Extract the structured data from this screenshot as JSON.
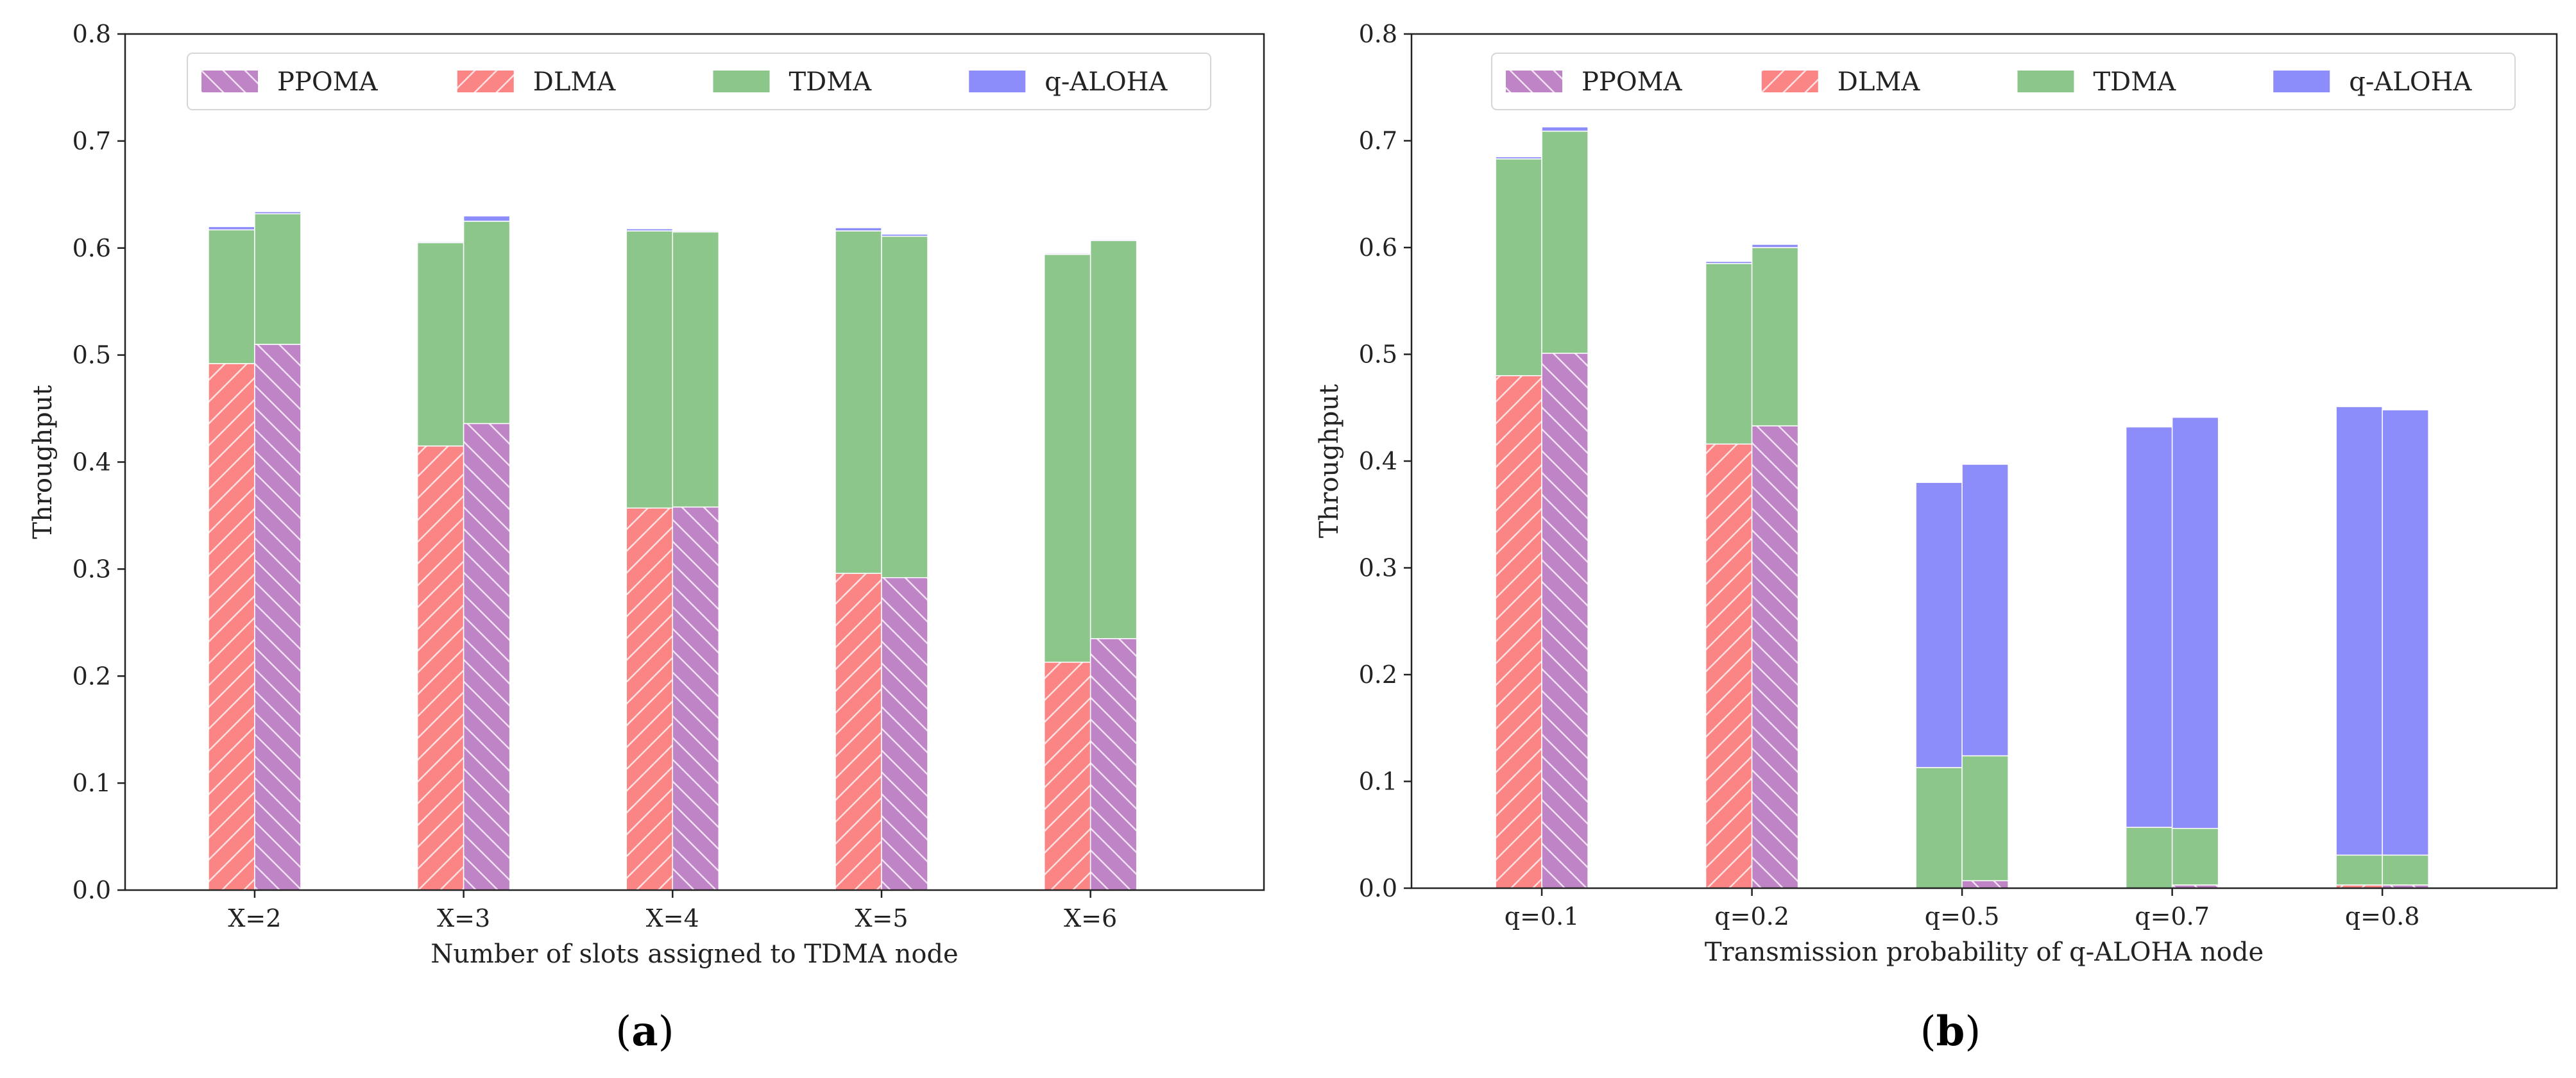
{
  "colors": {
    "PPOMA": "#bf84c6",
    "DLMA": "#fb8585",
    "TDMA": "#8cc68b",
    "q-ALOHA": "#8c8cfb"
  },
  "chart_data": [
    {
      "type": "bar",
      "stacked": true,
      "caption_letter": "a",
      "title": "",
      "xlabel": "Number of slots assigned to TDMA node",
      "ylabel": "Throughput",
      "ylim": [
        0,
        0.8
      ],
      "yticks": [
        0.0,
        0.1,
        0.2,
        0.3,
        0.4,
        0.5,
        0.6,
        0.7,
        0.8
      ],
      "grid": false,
      "legend": {
        "placement": "top",
        "entries": [
          "PPOMA",
          "DLMA",
          "TDMA",
          "q-ALOHA"
        ]
      },
      "categories": [
        "X=2",
        "X=3",
        "X=4",
        "X=5",
        "X=6"
      ],
      "bars": [
        {
          "category": "X=2",
          "method": "DLMA",
          "agent": 0.492,
          "TDMA": 0.125,
          "q-ALOHA": 0.003
        },
        {
          "category": "X=2",
          "method": "PPOMA",
          "agent": 0.51,
          "TDMA": 0.122,
          "q-ALOHA": 0.002
        },
        {
          "category": "X=3",
          "method": "DLMA",
          "agent": 0.415,
          "TDMA": 0.19,
          "q-ALOHA": 0.001
        },
        {
          "category": "X=3",
          "method": "PPOMA",
          "agent": 0.436,
          "TDMA": 0.189,
          "q-ALOHA": 0.005
        },
        {
          "category": "X=4",
          "method": "DLMA",
          "agent": 0.357,
          "TDMA": 0.259,
          "q-ALOHA": 0.002
        },
        {
          "category": "X=4",
          "method": "PPOMA",
          "agent": 0.358,
          "TDMA": 0.257,
          "q-ALOHA": 0.001
        },
        {
          "category": "X=5",
          "method": "DLMA",
          "agent": 0.296,
          "TDMA": 0.32,
          "q-ALOHA": 0.003
        },
        {
          "category": "X=5",
          "method": "PPOMA",
          "agent": 0.292,
          "TDMA": 0.319,
          "q-ALOHA": 0.002
        },
        {
          "category": "X=6",
          "method": "DLMA",
          "agent": 0.213,
          "TDMA": 0.381,
          "q-ALOHA": 0.001
        },
        {
          "category": "X=6",
          "method": "PPOMA",
          "agent": 0.235,
          "TDMA": 0.372,
          "q-ALOHA": 0.001
        }
      ]
    },
    {
      "type": "bar",
      "stacked": true,
      "caption_letter": "b",
      "title": "",
      "xlabel": "Transmission probability of q-ALOHA node",
      "ylabel": "Throughput",
      "ylim": [
        0,
        0.8
      ],
      "yticks": [
        0.0,
        0.1,
        0.2,
        0.3,
        0.4,
        0.5,
        0.6,
        0.7,
        0.8
      ],
      "grid": false,
      "legend": {
        "placement": "top",
        "entries": [
          "PPOMA",
          "DLMA",
          "TDMA",
          "q-ALOHA"
        ]
      },
      "categories": [
        "q=0.1",
        "q=0.2",
        "q=0.5",
        "q=0.7",
        "q=0.8"
      ],
      "bars": [
        {
          "category": "q=0.1",
          "method": "DLMA",
          "agent": 0.48,
          "TDMA": 0.203,
          "q-ALOHA": 0.002
        },
        {
          "category": "q=0.1",
          "method": "PPOMA",
          "agent": 0.501,
          "TDMA": 0.208,
          "q-ALOHA": 0.004
        },
        {
          "category": "q=0.2",
          "method": "DLMA",
          "agent": 0.416,
          "TDMA": 0.169,
          "q-ALOHA": 0.002
        },
        {
          "category": "q=0.2",
          "method": "PPOMA",
          "agent": 0.433,
          "TDMA": 0.167,
          "q-ALOHA": 0.003
        },
        {
          "category": "q=0.5",
          "method": "DLMA",
          "agent": 0.0,
          "TDMA": 0.113,
          "q-ALOHA": 0.267
        },
        {
          "category": "q=0.5",
          "method": "PPOMA",
          "agent": 0.007,
          "TDMA": 0.117,
          "q-ALOHA": 0.273
        },
        {
          "category": "q=0.7",
          "method": "DLMA",
          "agent": 0.0,
          "TDMA": 0.057,
          "q-ALOHA": 0.375
        },
        {
          "category": "q=0.7",
          "method": "PPOMA",
          "agent": 0.003,
          "TDMA": 0.053,
          "q-ALOHA": 0.385
        },
        {
          "category": "q=0.8",
          "method": "DLMA",
          "agent": 0.003,
          "TDMA": 0.028,
          "q-ALOHA": 0.42
        },
        {
          "category": "q=0.8",
          "method": "PPOMA",
          "agent": 0.003,
          "TDMA": 0.028,
          "q-ALOHA": 0.417
        }
      ]
    }
  ]
}
